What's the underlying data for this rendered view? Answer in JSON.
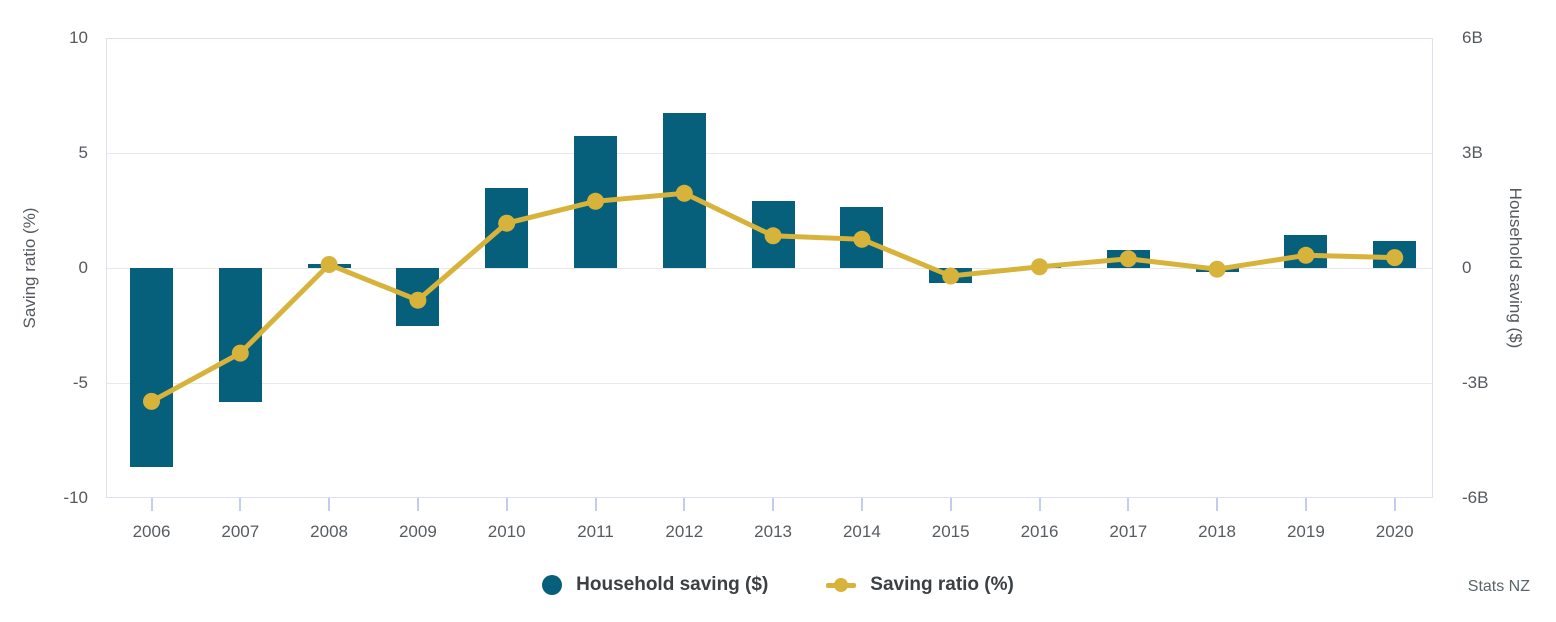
{
  "chart_data": {
    "type": "combo-bar-line",
    "categories": [
      "2006",
      "2007",
      "2008",
      "2009",
      "2010",
      "2011",
      "2012",
      "2013",
      "2014",
      "2015",
      "2016",
      "2017",
      "2018",
      "2019",
      "2020"
    ],
    "series": [
      {
        "name": "Household saving ($)",
        "type": "bar",
        "axis": "right",
        "unit": "billions $",
        "color": "#07607b",
        "values": [
          -5.2,
          -3.5,
          0.1,
          -1.5,
          2.1,
          3.45,
          4.05,
          1.75,
          1.6,
          -0.4,
          0.02,
          0.47,
          -0.1,
          0.85,
          0.7
        ]
      },
      {
        "name": "Saving ratio (%)",
        "type": "line",
        "axis": "left",
        "unit": "%",
        "color": "#d7b33c",
        "values": [
          -5.8,
          -3.7,
          0.15,
          -1.4,
          1.95,
          2.9,
          3.25,
          1.4,
          1.25,
          -0.35,
          0.05,
          0.4,
          -0.05,
          0.55,
          0.45
        ]
      }
    ],
    "left_axis": {
      "title": "Saving ratio (%)",
      "ticks": [
        "10",
        "5",
        "0",
        "-5",
        "-10"
      ],
      "range": [
        -10,
        10
      ]
    },
    "right_axis": {
      "title": "Household saving ($)",
      "ticks": [
        "6B",
        "3B",
        "0",
        "-3B",
        "-6B"
      ],
      "range": [
        -6,
        6
      ]
    },
    "grid": "horizontal",
    "legend_position": "bottom-center",
    "source": "Stats NZ"
  },
  "colors": {
    "bar_teal": "#07607b",
    "line_gold": "#d7b33c",
    "gridline": "#e8e8e8",
    "axis_border": "#dbe0f2",
    "tick_mark": "#c3cbee",
    "axis_text": "#55595d",
    "legend_text": "#3c4043",
    "source_text": "#5a666b"
  }
}
